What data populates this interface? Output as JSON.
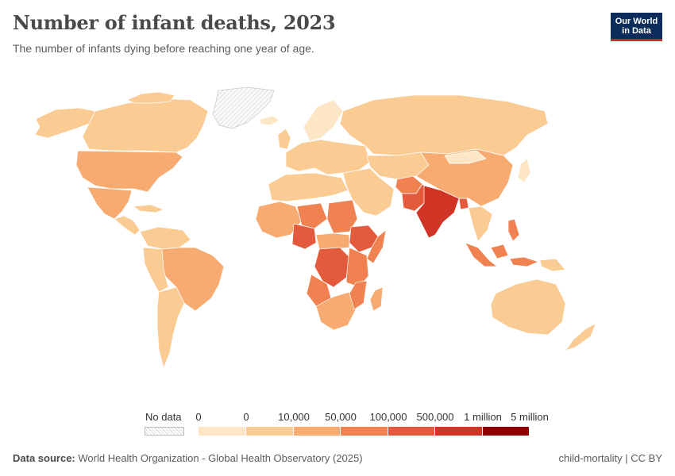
{
  "header": {
    "title": "Number of infant deaths, 2023",
    "subtitle": "The number of infants dying before reaching one year of age."
  },
  "logo": {
    "line1": "Our World",
    "line2": "in Data"
  },
  "legend": {
    "no_data_label": "No data",
    "bin_labels": [
      "0",
      "0",
      "10,000",
      "50,000",
      "100,000",
      "500,000",
      "1 million",
      "5 million"
    ],
    "bin_colors": [
      "#fde6c6",
      "#fbcb94",
      "#f7ab70",
      "#f08252",
      "#e35b3c",
      "#cf3424",
      "#8e0000"
    ]
  },
  "footer": {
    "source_label": "Data source:",
    "source_text": "World Health Organization - Global Health Observatory (2025)",
    "credit": "child-mortality | CC BY"
  },
  "chart_data": {
    "type": "map",
    "title": "Number of infant deaths, 2023",
    "subtitle": "The number of infants dying before reaching one year of age.",
    "legend_bins": [
      "0",
      "0",
      "10,000",
      "50,000",
      "100,000",
      "500,000",
      "1 million",
      "5 million"
    ],
    "colors": {
      "no_data": "#f2f2f2",
      "bin1": "#fde6c6",
      "bin2": "#fbcb94",
      "bin3": "#f7ab70",
      "bin4": "#f08252",
      "bin5": "#e35b3c",
      "bin6": "#cf3424",
      "bin7": "#8e0000"
    },
    "regions": [
      {
        "name": "India",
        "bin": 6
      },
      {
        "name": "Pakistan",
        "bin": 5
      },
      {
        "name": "Nigeria",
        "bin": 5
      },
      {
        "name": "Democratic Republic of the Congo",
        "bin": 5
      },
      {
        "name": "Ethiopia",
        "bin": 5
      },
      {
        "name": "Bangladesh",
        "bin": 5
      },
      {
        "name": "Indonesia",
        "bin": 4
      },
      {
        "name": "Sudan",
        "bin": 4
      },
      {
        "name": "Niger",
        "bin": 4
      },
      {
        "name": "Afghanistan",
        "bin": 4
      },
      {
        "name": "Tanzania",
        "bin": 4
      },
      {
        "name": "Mozambique",
        "bin": 4
      },
      {
        "name": "Angola",
        "bin": 4
      },
      {
        "name": "Kenya",
        "bin": 4
      },
      {
        "name": "Philippines",
        "bin": 4
      },
      {
        "name": "China",
        "bin": 3
      },
      {
        "name": "United States",
        "bin": 3
      },
      {
        "name": "Brazil",
        "bin": 3
      },
      {
        "name": "Mexico",
        "bin": 3
      },
      {
        "name": "Russia",
        "bin": 2
      },
      {
        "name": "Canada",
        "bin": 2
      },
      {
        "name": "Australia",
        "bin": 2
      },
      {
        "name": "Argentina",
        "bin": 2
      },
      {
        "name": "Greenland",
        "bin": 0
      }
    ]
  }
}
